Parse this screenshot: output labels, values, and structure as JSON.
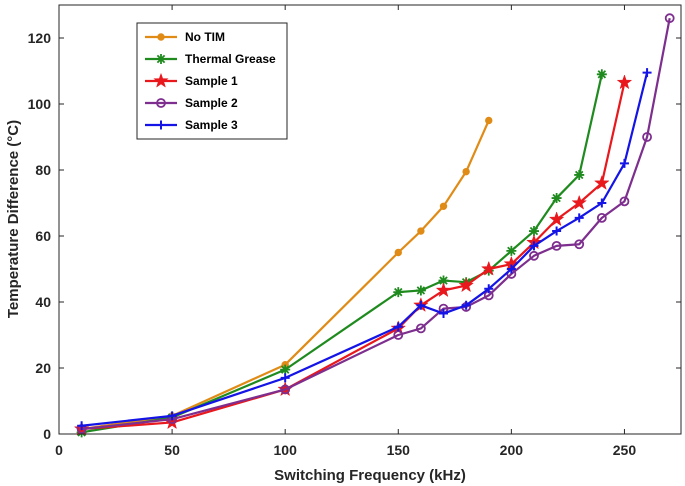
{
  "chart_data": {
    "type": "line",
    "title": "",
    "xlabel": "Switching Frequency (kHz)",
    "ylabel": "Temperature Difference (°C)",
    "xlim": [
      0,
      275
    ],
    "ylim": [
      0,
      130
    ],
    "xticks": [
      0,
      50,
      100,
      150,
      200,
      250
    ],
    "yticks": [
      0,
      20,
      40,
      60,
      80,
      100,
      120
    ],
    "legend_position": "top-left",
    "series": [
      {
        "name": "No TIM",
        "color": "#E08B16",
        "marker": "dot",
        "x": [
          10,
          50,
          100,
          150,
          160,
          170,
          180,
          190
        ],
        "y": [
          1.5,
          5.5,
          21,
          55,
          61.5,
          69,
          79.5,
          95
        ]
      },
      {
        "name": "Thermal Grease",
        "color": "#1F8B1F",
        "marker": "asterisk",
        "x": [
          10,
          50,
          100,
          150,
          160,
          170,
          180,
          190,
          200,
          210,
          220,
          230,
          240
        ],
        "y": [
          0.5,
          5,
          19.5,
          43,
          43.5,
          46.5,
          46,
          49.5,
          55.5,
          61.5,
          71.5,
          78.5,
          109
        ]
      },
      {
        "name": "Sample 1",
        "color": "#E8181D",
        "marker": "star",
        "x": [
          10,
          50,
          100,
          150,
          160,
          170,
          180,
          190,
          200,
          210,
          220,
          230,
          240,
          250
        ],
        "y": [
          1.5,
          3.5,
          13.5,
          32,
          39,
          43.5,
          45,
          50,
          51.5,
          58,
          65,
          70,
          76,
          106.5
        ]
      },
      {
        "name": "Sample 2",
        "color": "#7D2E8E",
        "marker": "circle",
        "x": [
          10,
          50,
          100,
          150,
          160,
          170,
          180,
          190,
          200,
          210,
          220,
          230,
          240,
          250,
          260,
          270
        ],
        "y": [
          1.5,
          4.5,
          13.5,
          30,
          32,
          38,
          38.5,
          42,
          48.5,
          54,
          57,
          57.5,
          65.5,
          70.5,
          90,
          126
        ]
      },
      {
        "name": "Sample 3",
        "color": "#1414E6",
        "marker": "plus",
        "x": [
          10,
          50,
          100,
          150,
          160,
          170,
          180,
          190,
          200,
          210,
          220,
          230,
          240,
          250,
          260
        ],
        "y": [
          2.5,
          5.5,
          17,
          32.5,
          39,
          36.5,
          39,
          44,
          50,
          57,
          61.5,
          65.5,
          70,
          82,
          109.5
        ]
      }
    ]
  }
}
